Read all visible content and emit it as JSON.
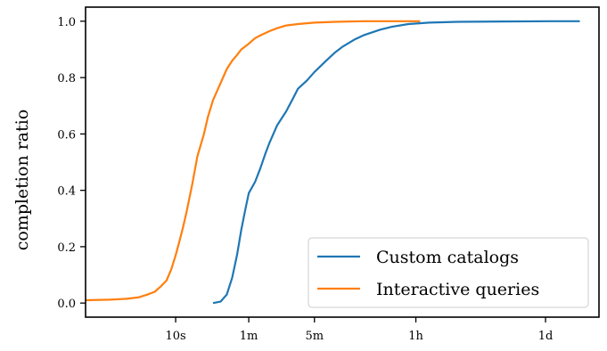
{
  "chart_data": {
    "type": "line",
    "title": "",
    "xlabel": "",
    "ylabel": "completion ratio",
    "x_scale": "log",
    "x_unit": "seconds",
    "xlim": [
      1.1,
      320000
    ],
    "ylim": [
      -0.05,
      1.05
    ],
    "xticks": [
      {
        "value": 10,
        "label": "10s"
      },
      {
        "value": 60,
        "label": "1m"
      },
      {
        "value": 300,
        "label": "5m"
      },
      {
        "value": 3600,
        "label": "1h"
      },
      {
        "value": 86400,
        "label": "1d"
      }
    ],
    "yticks": [
      {
        "value": 0.0,
        "label": "0.0"
      },
      {
        "value": 0.2,
        "label": "0.2"
      },
      {
        "value": 0.4,
        "label": "0.4"
      },
      {
        "value": 0.6,
        "label": "0.6"
      },
      {
        "value": 0.8,
        "label": "0.8"
      },
      {
        "value": 1.0,
        "label": "1.0"
      }
    ],
    "grid": false,
    "legend_position": "lower-right",
    "series": [
      {
        "name": "Custom catalogs",
        "color": "#1f77b4",
        "x": [
          25,
          30,
          35,
          40,
          45,
          50,
          55,
          60,
          70,
          80,
          90,
          100,
          120,
          150,
          180,
          200,
          250,
          300,
          400,
          500,
          600,
          800,
          1000,
          1500,
          2000,
          3000,
          5000,
          10000,
          30000,
          100000,
          200000
        ],
        "y": [
          0.0,
          0.005,
          0.03,
          0.09,
          0.17,
          0.26,
          0.33,
          0.39,
          0.43,
          0.48,
          0.53,
          0.57,
          0.63,
          0.68,
          0.73,
          0.76,
          0.79,
          0.82,
          0.86,
          0.89,
          0.91,
          0.935,
          0.95,
          0.97,
          0.98,
          0.99,
          0.995,
          0.998,
          0.999,
          1.0,
          1.0
        ]
      },
      {
        "name": "Interactive queries",
        "color": "#ff7f0e",
        "x": [
          1.1,
          2,
          3,
          4,
          5,
          6,
          7,
          8,
          9,
          10,
          11,
          12,
          13,
          15,
          17,
          20,
          22,
          25,
          30,
          35,
          40,
          45,
          50,
          60,
          70,
          80,
          100,
          120,
          150,
          200,
          300,
          500,
          1000,
          2000,
          4000
        ],
        "y": [
          0.01,
          0.012,
          0.015,
          0.02,
          0.03,
          0.04,
          0.06,
          0.08,
          0.12,
          0.17,
          0.22,
          0.27,
          0.32,
          0.42,
          0.52,
          0.6,
          0.66,
          0.72,
          0.78,
          0.83,
          0.86,
          0.88,
          0.9,
          0.92,
          0.94,
          0.95,
          0.965,
          0.975,
          0.985,
          0.99,
          0.995,
          0.998,
          1.0,
          1.0,
          1.0
        ]
      }
    ]
  }
}
